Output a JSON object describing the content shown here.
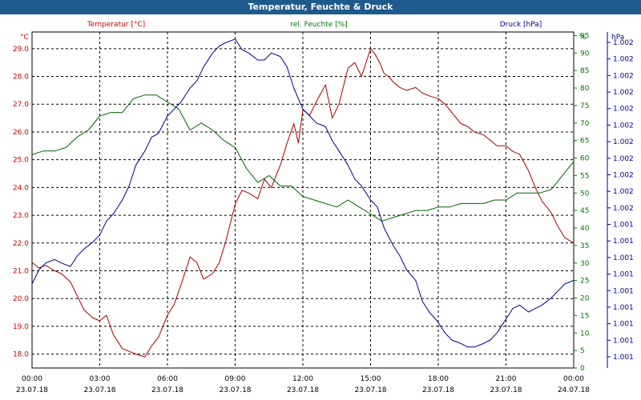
{
  "window": {
    "title": "Temperatur, Feuchte & Druck"
  },
  "chart_data": {
    "type": "line",
    "title": "Temperatur, Feuchte & Druck",
    "grid": true,
    "x_ticks": [
      {
        "time": "00:00",
        "date": "23.07.18"
      },
      {
        "time": "03:00",
        "date": "23.07.18"
      },
      {
        "time": "06:00",
        "date": "23.07.18"
      },
      {
        "time": "09:00",
        "date": "23.07.18"
      },
      {
        "time": "12:00",
        "date": "23.07.18"
      },
      {
        "time": "15:00",
        "date": "23.07.18"
      },
      {
        "time": "18:00",
        "date": "23.07.18"
      },
      {
        "time": "21:00",
        "date": "23.07.18"
      },
      {
        "time": "00:00",
        "date": "24.07.18"
      }
    ],
    "xlim_hours": [
      0,
      24
    ],
    "axes": {
      "temperature": {
        "unit": "°C",
        "ylim": [
          17.5,
          29.6
        ],
        "ticks": [
          "18.0",
          "19.0",
          "20.0",
          "21.0",
          "22.0",
          "23.0",
          "24.0",
          "25.0",
          "26.0",
          "27.0",
          "28.0",
          "29.0"
        ],
        "color": "#cc0000"
      },
      "humidity": {
        "unit": "%",
        "ylim": [
          0,
          96
        ],
        "ticks": [
          "0",
          "5",
          "10",
          "15",
          "20",
          "25",
          "30",
          "35",
          "40",
          "45",
          "50",
          "55",
          "60",
          "65",
          "70",
          "75",
          "80",
          "85",
          "90",
          "95"
        ],
        "color": "#007700"
      },
      "pressure": {
        "unit": "hPa",
        "ticks": [
          "1.001",
          "1.001",
          "1.001",
          "1.001",
          "1.001",
          "1.001",
          "1.001",
          "1.001",
          "1.001",
          "1.002",
          "1.002",
          "1.002",
          "1.002",
          "1.002",
          "1.002",
          "1.002",
          "1.002",
          "1.002",
          "1.002",
          "1.002"
        ],
        "color": "#00008b"
      }
    },
    "series": [
      {
        "name": "Temperatur [°C]",
        "axis": "temperature",
        "color": "#aa0000",
        "x": [
          0,
          0.3,
          0.6,
          1.0,
          1.3,
          1.7,
          2.0,
          2.3,
          2.7,
          3.0,
          3.3,
          3.6,
          4.0,
          4.3,
          4.6,
          5.0,
          5.3,
          5.6,
          6.0,
          6.3,
          6.6,
          7.0,
          7.3,
          7.6,
          8.0,
          8.3,
          8.6,
          9.0,
          9.3,
          9.6,
          10.0,
          10.3,
          10.6,
          11.0,
          11.3,
          11.6,
          11.8,
          12.0,
          12.3,
          12.6,
          13.0,
          13.3,
          13.6,
          14.0,
          14.3,
          14.6,
          15.0,
          15.2,
          15.4,
          15.6,
          15.8,
          16.0,
          16.3,
          16.6,
          17.0,
          17.3,
          17.6,
          18.0,
          18.3,
          18.6,
          19.0,
          19.3,
          19.6,
          20.0,
          20.3,
          20.6,
          21.0,
          21.3,
          21.6,
          22.0,
          22.3,
          22.6,
          23.0,
          23.3,
          23.6,
          24.0
        ],
        "values": [
          21.3,
          21.1,
          21.2,
          21.0,
          20.9,
          20.6,
          20.1,
          19.6,
          19.3,
          19.2,
          19.4,
          18.7,
          18.2,
          18.1,
          18.0,
          17.9,
          18.3,
          18.6,
          19.4,
          19.8,
          20.5,
          21.5,
          21.3,
          20.7,
          20.9,
          21.3,
          22.1,
          23.4,
          23.9,
          23.8,
          23.6,
          24.3,
          24.0,
          24.8,
          25.6,
          26.3,
          25.6,
          26.8,
          26.6,
          27.1,
          27.7,
          26.5,
          27.0,
          28.3,
          28.5,
          28.0,
          29.0,
          28.8,
          28.5,
          28.1,
          28.0,
          27.8,
          27.6,
          27.5,
          27.6,
          27.4,
          27.3,
          27.2,
          27.0,
          26.7,
          26.3,
          26.2,
          26.0,
          25.9,
          25.7,
          25.5,
          25.5,
          25.3,
          25.2,
          24.6,
          24.0,
          23.5,
          23.1,
          22.6,
          22.2,
          22.0
        ]
      },
      {
        "name": "rel. Feuchte [%]",
        "axis": "humidity",
        "color": "#006400",
        "x": [
          0,
          0.5,
          1.0,
          1.5,
          2.0,
          2.5,
          3.0,
          3.5,
          4.0,
          4.5,
          5.0,
          5.5,
          6.0,
          6.5,
          7.0,
          7.5,
          8.0,
          8.5,
          9.0,
          9.5,
          10.0,
          10.5,
          11.0,
          11.5,
          12.0,
          12.5,
          13.0,
          13.5,
          14.0,
          14.5,
          15.0,
          15.5,
          16.0,
          16.5,
          17.0,
          17.5,
          18.0,
          18.5,
          19.0,
          19.5,
          20.0,
          20.5,
          21.0,
          21.5,
          22.0,
          22.5,
          23.0,
          23.5,
          24.0
        ],
        "values": [
          61,
          62,
          62,
          63,
          66,
          68,
          72,
          73,
          73,
          77,
          78,
          78,
          76,
          74,
          68,
          70,
          68,
          65,
          63,
          57,
          53,
          55,
          52,
          52,
          49,
          48,
          47,
          46,
          48,
          46,
          44,
          42,
          43,
          44,
          45,
          45,
          46,
          46,
          47,
          47,
          47,
          48,
          48,
          50,
          50,
          50,
          51,
          55,
          59
        ]
      },
      {
        "name": "Druck [hPa]",
        "axis": "pressure",
        "color": "#00008b",
        "x": [
          0,
          0.3,
          0.6,
          1.0,
          1.3,
          1.7,
          2.0,
          2.3,
          2.7,
          3.0,
          3.3,
          3.6,
          4.0,
          4.3,
          4.6,
          5.0,
          5.3,
          5.6,
          6.0,
          6.3,
          6.6,
          7.0,
          7.3,
          7.6,
          8.0,
          8.3,
          8.6,
          9.0,
          9.3,
          9.6,
          10.0,
          10.3,
          10.6,
          11.0,
          11.3,
          11.6,
          12.0,
          12.3,
          12.6,
          13.0,
          13.3,
          13.6,
          14.0,
          14.3,
          14.6,
          15.0,
          15.3,
          15.6,
          16.0,
          16.3,
          16.6,
          17.0,
          17.3,
          17.6,
          18.0,
          18.3,
          18.6,
          19.0,
          19.3,
          19.6,
          20.0,
          20.3,
          20.6,
          21.0,
          21.3,
          21.6,
          22.0,
          22.3,
          22.6,
          23.0,
          23.3,
          23.6,
          24.0
        ],
        "values": [
          24,
          28,
          30,
          31,
          30,
          29,
          32,
          34,
          36,
          38,
          42,
          44,
          48,
          52,
          58,
          62,
          66,
          67,
          72,
          74,
          76,
          80,
          82,
          86,
          90,
          92,
          93,
          94,
          91,
          90,
          88,
          88,
          90,
          89,
          86,
          80,
          74,
          72,
          70,
          69,
          65,
          62,
          58,
          54,
          52,
          48,
          46,
          40,
          35,
          32,
          28,
          25,
          19,
          16,
          13,
          10,
          8,
          7,
          6,
          6,
          7,
          8,
          10,
          14,
          17,
          18,
          16,
          17,
          18,
          20,
          22,
          24,
          25
        ]
      }
    ]
  }
}
